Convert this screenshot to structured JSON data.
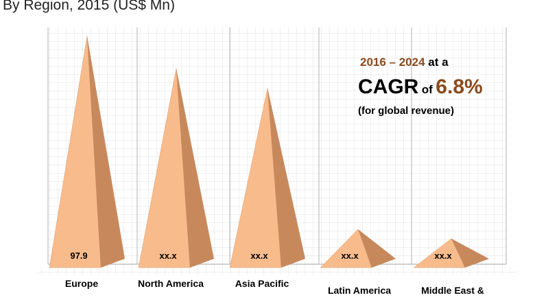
{
  "chart_data": {
    "type": "pyramid",
    "title": "By Region, 2015 (US$ Mn)",
    "categories": [
      "Europe",
      "North America",
      "Asia Pacific",
      "Latin America",
      "Middle East &"
    ],
    "values": [
      97.9,
      84,
      75.5,
      15,
      11
    ],
    "value_labels": [
      "97.9",
      "xx.x",
      "xx.x",
      "xx.x",
      "xx.x"
    ],
    "color": "#f8bb8c",
    "shade_color": "#c7895c",
    "annotation": {
      "line1": [
        "2016 – 2024",
        "at a"
      ],
      "line2": [
        "CAGR",
        "of",
        "6.8%"
      ],
      "line3": "(for global revenue)"
    }
  }
}
